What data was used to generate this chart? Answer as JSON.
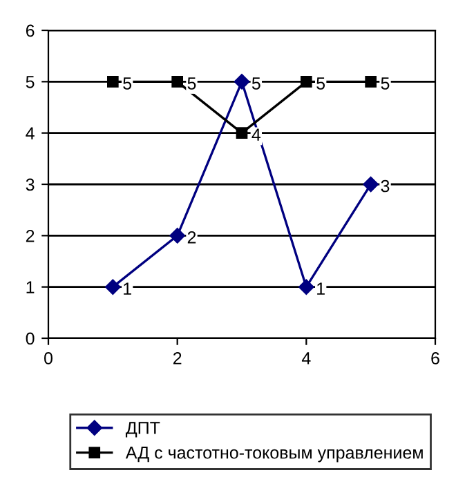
{
  "chart_data": {
    "type": "line",
    "x": [
      1,
      2,
      3,
      4,
      5
    ],
    "series": [
      {
        "name": "ДПТ",
        "color": "#000080",
        "marker": "diamond",
        "values": [
          1,
          2,
          5,
          1,
          3
        ]
      },
      {
        "name": "АД с частотно-токовым управлением",
        "color": "#000000",
        "marker": "square",
        "values": [
          5,
          5,
          4,
          5,
          5
        ]
      }
    ],
    "xlim": [
      0,
      6
    ],
    "xticks": [
      0,
      2,
      4,
      6
    ],
    "ylim": [
      0,
      6
    ],
    "yticks": [
      0,
      1,
      2,
      3,
      4,
      5,
      6
    ],
    "grid": "y",
    "legend": "bottom",
    "data_labels": true
  }
}
